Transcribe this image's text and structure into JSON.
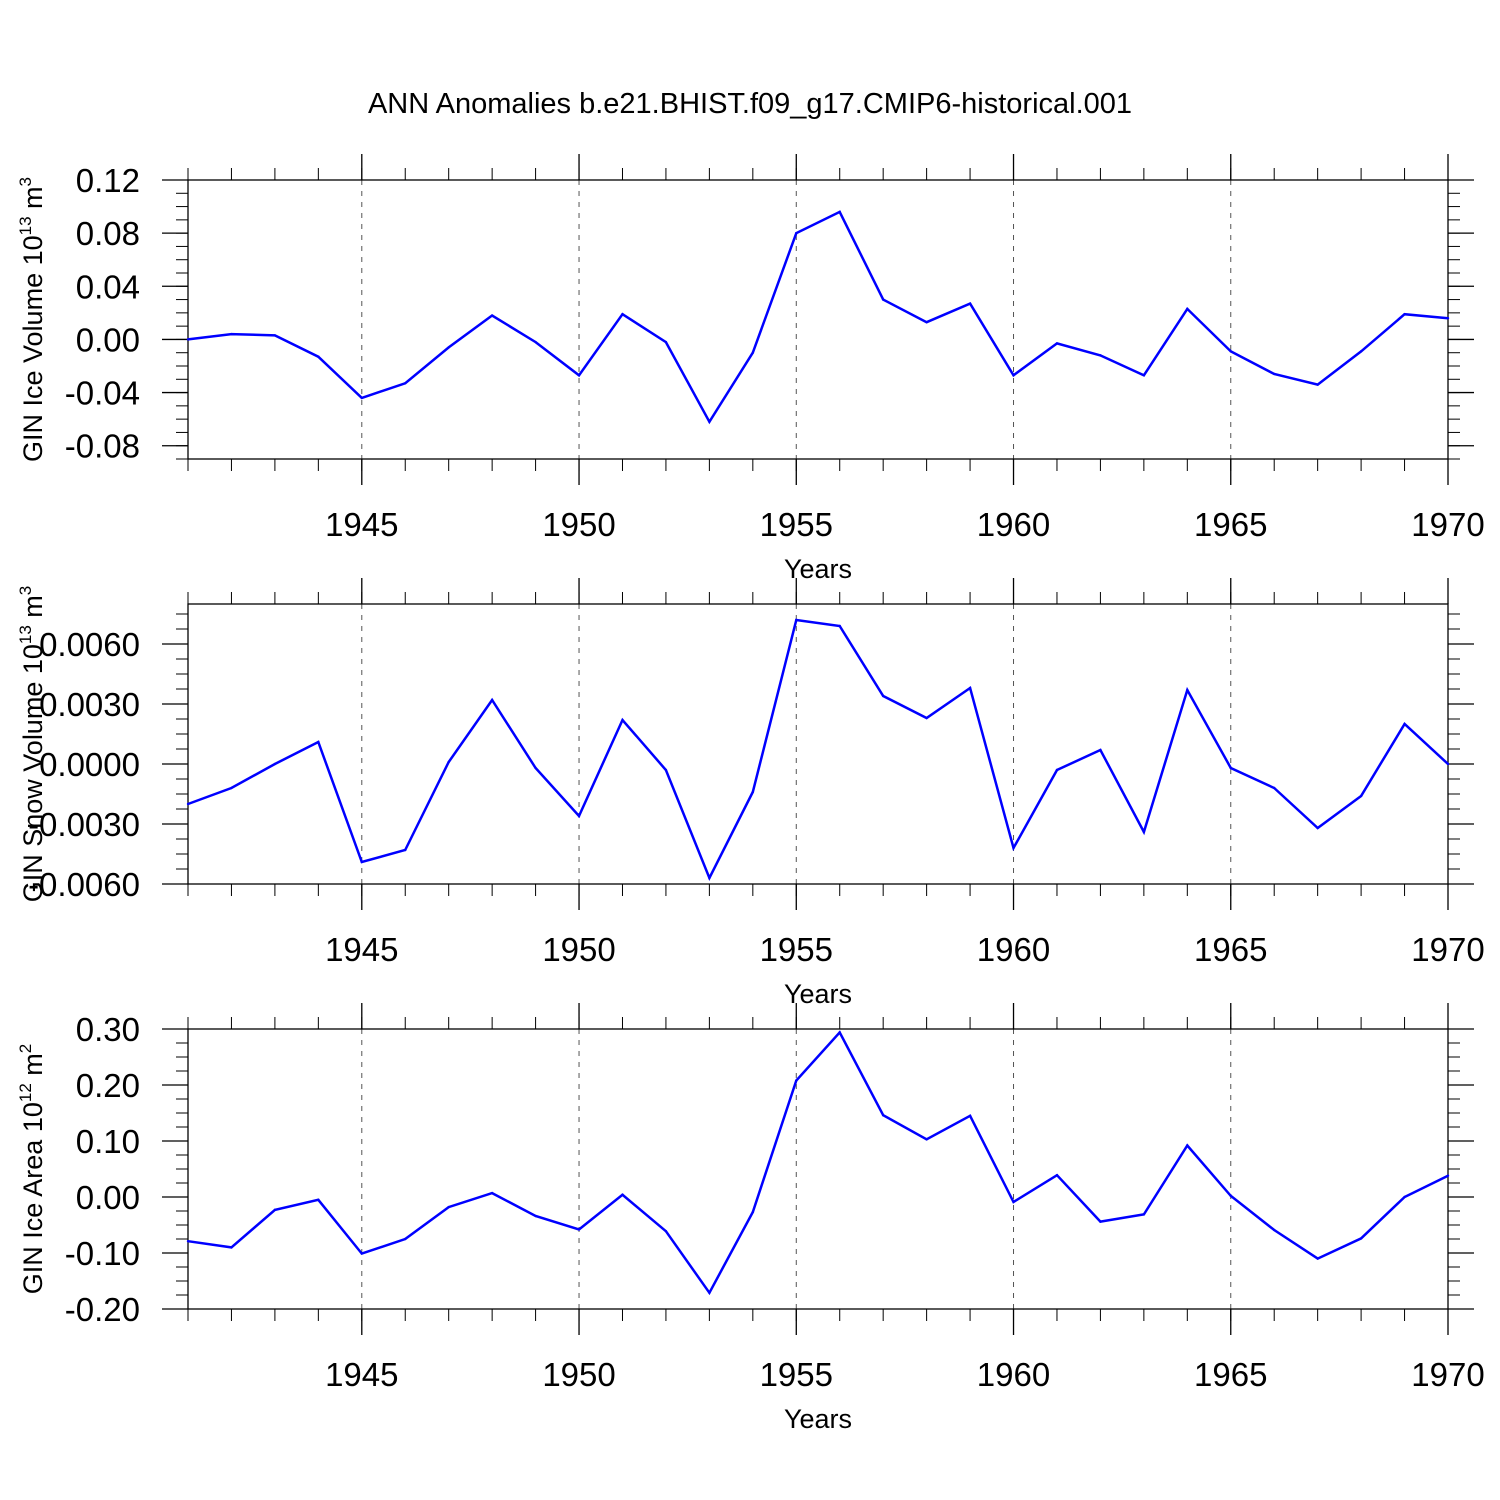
{
  "title": "ANN Anomalies b.e21.BHIST.f09_g17.CMIP6-historical.001",
  "chart_data": [
    {
      "type": "line",
      "ylabel": "GIN Ice Volume 10",
      "ylabel_exp": "13",
      "ylabel_unit": "m",
      "ylabel_unit_exp": "3",
      "xlabel": "Years",
      "xlim": [
        1941,
        1970
      ],
      "ylim": [
        -0.09,
        0.12
      ],
      "yticks": [
        -0.08,
        -0.04,
        0.0,
        0.04,
        0.08,
        0.12
      ],
      "ytick_labels": [
        "-0.08",
        "-0.04",
        "0.00",
        "0.04",
        "0.08",
        "0.12"
      ],
      "xticks": [
        1945,
        1950,
        1955,
        1960,
        1965,
        1970
      ],
      "xtick_labels": [
        "1945",
        "1950",
        "1955",
        "1960",
        "1965",
        "1970"
      ],
      "color": "#0000ff",
      "x": [
        1941,
        1942,
        1943,
        1944,
        1945,
        1946,
        1947,
        1948,
        1949,
        1950,
        1951,
        1952,
        1953,
        1954,
        1955,
        1956,
        1957,
        1958,
        1959,
        1960,
        1961,
        1962,
        1963,
        1964,
        1965,
        1966,
        1967,
        1968,
        1969,
        1970
      ],
      "values": [
        0.0,
        0.004,
        0.003,
        -0.013,
        -0.044,
        -0.033,
        -0.006,
        0.018,
        -0.002,
        -0.027,
        0.019,
        -0.002,
        -0.062,
        -0.01,
        0.08,
        0.096,
        0.03,
        0.013,
        0.027,
        -0.027,
        -0.003,
        -0.012,
        -0.027,
        0.023,
        -0.009,
        -0.026,
        -0.034,
        -0.009,
        0.019,
        0.016
      ]
    },
    {
      "type": "line",
      "ylabel": "GIN Snow Volume 10",
      "ylabel_exp": "13",
      "ylabel_unit": "m",
      "ylabel_unit_exp": "3",
      "xlabel": "Years",
      "xlim": [
        1941,
        1970
      ],
      "ylim": [
        -0.006,
        0.008
      ],
      "yticks": [
        -0.006,
        -0.003,
        0.0,
        0.003,
        0.006
      ],
      "ytick_labels": [
        "-0.0060",
        "-0.0030",
        "0.0000",
        "0.0030",
        "0.0060"
      ],
      "xticks": [
        1945,
        1950,
        1955,
        1960,
        1965,
        1970
      ],
      "xtick_labels": [
        "1945",
        "1950",
        "1955",
        "1960",
        "1965",
        "1970"
      ],
      "color": "#0000ff",
      "x": [
        1941,
        1942,
        1943,
        1944,
        1945,
        1946,
        1947,
        1948,
        1949,
        1950,
        1951,
        1952,
        1953,
        1954,
        1955,
        1956,
        1957,
        1958,
        1959,
        1960,
        1961,
        1962,
        1963,
        1964,
        1965,
        1966,
        1967,
        1968,
        1969,
        1970
      ],
      "values": [
        -0.002,
        -0.0012,
        0.0,
        0.0011,
        -0.0049,
        -0.0043,
        0.0001,
        0.0032,
        -0.0002,
        -0.0026,
        0.0022,
        -0.0003,
        -0.0057,
        -0.0014,
        0.0072,
        0.0069,
        0.0034,
        0.0023,
        0.0038,
        -0.0042,
        -0.0003,
        0.0007,
        -0.0034,
        0.0037,
        -0.0002,
        -0.0012,
        -0.0032,
        -0.0016,
        0.002,
        0.0
      ]
    },
    {
      "type": "line",
      "ylabel": "GIN Ice Area 10",
      "ylabel_exp": "12",
      "ylabel_unit": "m",
      "ylabel_unit_exp": "2",
      "xlabel": "Years",
      "xlim": [
        1941,
        1970
      ],
      "ylim": [
        -0.2,
        0.3
      ],
      "yticks": [
        -0.2,
        -0.1,
        0.0,
        0.1,
        0.2,
        0.3
      ],
      "ytick_labels": [
        "-0.20",
        "-0.10",
        "0.00",
        "0.10",
        "0.20",
        "0.30"
      ],
      "xticks": [
        1945,
        1950,
        1955,
        1960,
        1965,
        1970
      ],
      "xtick_labels": [
        "1945",
        "1950",
        "1955",
        "1960",
        "1965",
        "1970"
      ],
      "color": "#0000ff",
      "x": [
        1941,
        1942,
        1943,
        1944,
        1945,
        1946,
        1947,
        1948,
        1949,
        1950,
        1951,
        1952,
        1953,
        1954,
        1955,
        1956,
        1957,
        1958,
        1959,
        1960,
        1961,
        1962,
        1963,
        1964,
        1965,
        1966,
        1967,
        1968,
        1969,
        1970
      ],
      "values": [
        -0.079,
        -0.09,
        -0.023,
        -0.005,
        -0.101,
        -0.075,
        -0.018,
        0.007,
        -0.034,
        -0.058,
        0.004,
        -0.061,
        -0.171,
        -0.027,
        0.208,
        0.294,
        0.146,
        0.103,
        0.145,
        -0.009,
        0.039,
        -0.044,
        -0.031,
        0.092,
        0.002,
        -0.059,
        -0.11,
        -0.074,
        0.0,
        0.038
      ]
    }
  ]
}
